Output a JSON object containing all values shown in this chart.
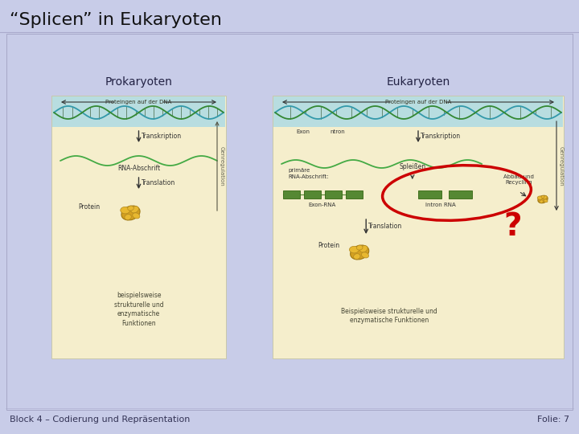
{
  "title": "“Splicen” in Eukaryoten",
  "title_fontsize": 16,
  "title_color": "#111111",
  "slide_bg": "#c8cce8",
  "footer_left": "Block 4 – Codierung und Repräsentation",
  "footer_right": "Folie: 7",
  "footer_fontsize": 8,
  "label_prokaryoten": "Prokaryoten",
  "label_eukaryoten": "Eukaryoten",
  "label_fontsize": 10,
  "question_mark": "?",
  "question_color": "#cc0000",
  "question_fontsize": 28,
  "ellipse_color": "#cc0000",
  "ellipse_linewidth": 2.5,
  "box_bg": "#f5eecc",
  "box_edge": "#c8c8aa",
  "dna_bg": "#b8dde0",
  "dna_color1": "#338833",
  "dna_color2": "#44aa44",
  "dna_teal": "#3399aa",
  "arrow_color": "#333333",
  "text_color": "#333333",
  "genreg_color": "#666655"
}
